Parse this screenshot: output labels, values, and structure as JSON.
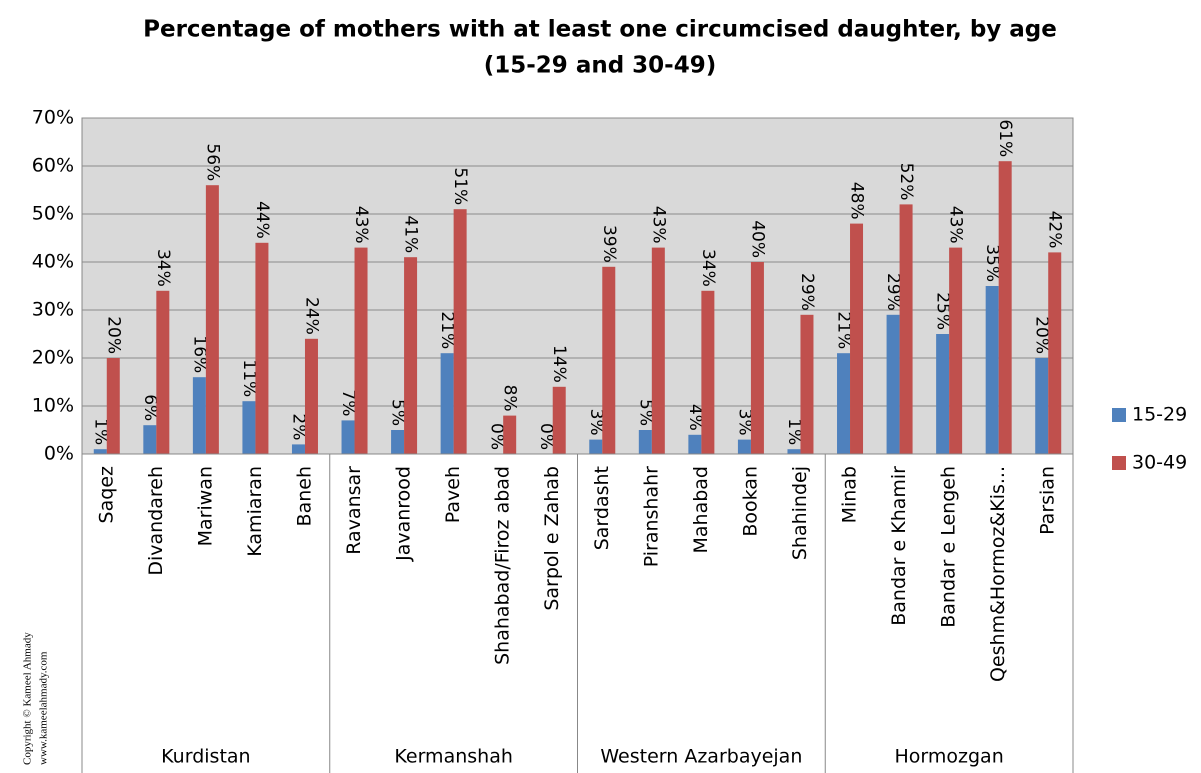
{
  "chart_data": {
    "type": "bar",
    "title": "Percentage of mothers with at least one circumcised daughter, by age",
    "subtitle": "(15-29 and 30-49)",
    "groups": [
      {
        "name": "Kurdistan",
        "categories": [
          "Saqez",
          "Divandareh",
          "Mariwan",
          "Kamiaran",
          "Baneh"
        ]
      },
      {
        "name": "Kermanshah",
        "categories": [
          "Ravansar",
          "Javanrood",
          "Paveh",
          "Shahabad/Firoz abad",
          "Sarpol e Zahab"
        ]
      },
      {
        "name": "Western Azarbayejan",
        "categories": [
          "Sardasht",
          "Piranshahr",
          "Mahabad",
          "Bookan",
          "Shahindej"
        ]
      },
      {
        "name": "Hormozgan",
        "categories": [
          "Minab",
          "Bandar e Khamir",
          "Bandar e Lengeh",
          "Qeshm&Hormoz&Kis...",
          "Parsian"
        ]
      }
    ],
    "series": [
      {
        "name": "15-29",
        "color": "#4f81bd",
        "values": [
          1,
          6,
          16,
          11,
          2,
          7,
          5,
          21,
          0,
          0,
          3,
          5,
          4,
          3,
          1,
          21,
          29,
          25,
          35,
          20
        ],
        "value_labels": [
          "1%",
          "6%",
          "16%",
          "11%",
          "2%",
          "7%",
          "5%",
          "21%",
          "0%",
          "0%",
          "3%",
          "5%",
          "4%",
          "3%",
          "1%",
          "21%",
          "29%",
          "25%",
          "35%",
          "20%"
        ]
      },
      {
        "name": "30-49",
        "color": "#c0504d",
        "values": [
          20,
          34,
          56,
          44,
          24,
          43,
          41,
          51,
          8,
          14,
          39,
          43,
          34,
          40,
          29,
          48,
          52,
          43,
          61,
          42
        ],
        "value_labels": [
          "20%",
          "34%",
          "56%",
          "44%",
          "24%",
          "43%",
          "41%",
          "51%",
          "8%",
          "14%",
          "39%",
          "43%",
          "34%",
          "40%",
          "29%",
          "48%",
          "52%",
          "43%",
          "61%",
          "42%"
        ]
      }
    ],
    "ylim": [
      0,
      70
    ],
    "yticks": [
      {
        "value": 0,
        "label": "0%"
      },
      {
        "value": 10,
        "label": "10%"
      },
      {
        "value": 20,
        "label": "20%"
      },
      {
        "value": 30,
        "label": "30%"
      },
      {
        "value": 40,
        "label": "40%"
      },
      {
        "value": 50,
        "label": "50%"
      },
      {
        "value": 60,
        "label": "60%"
      },
      {
        "value": 70,
        "label": "70%"
      }
    ],
    "grid": true,
    "legend": "right",
    "watermark": [
      "Copyright © Kameel Ahmady",
      "www.kameelahmady.com"
    ]
  }
}
